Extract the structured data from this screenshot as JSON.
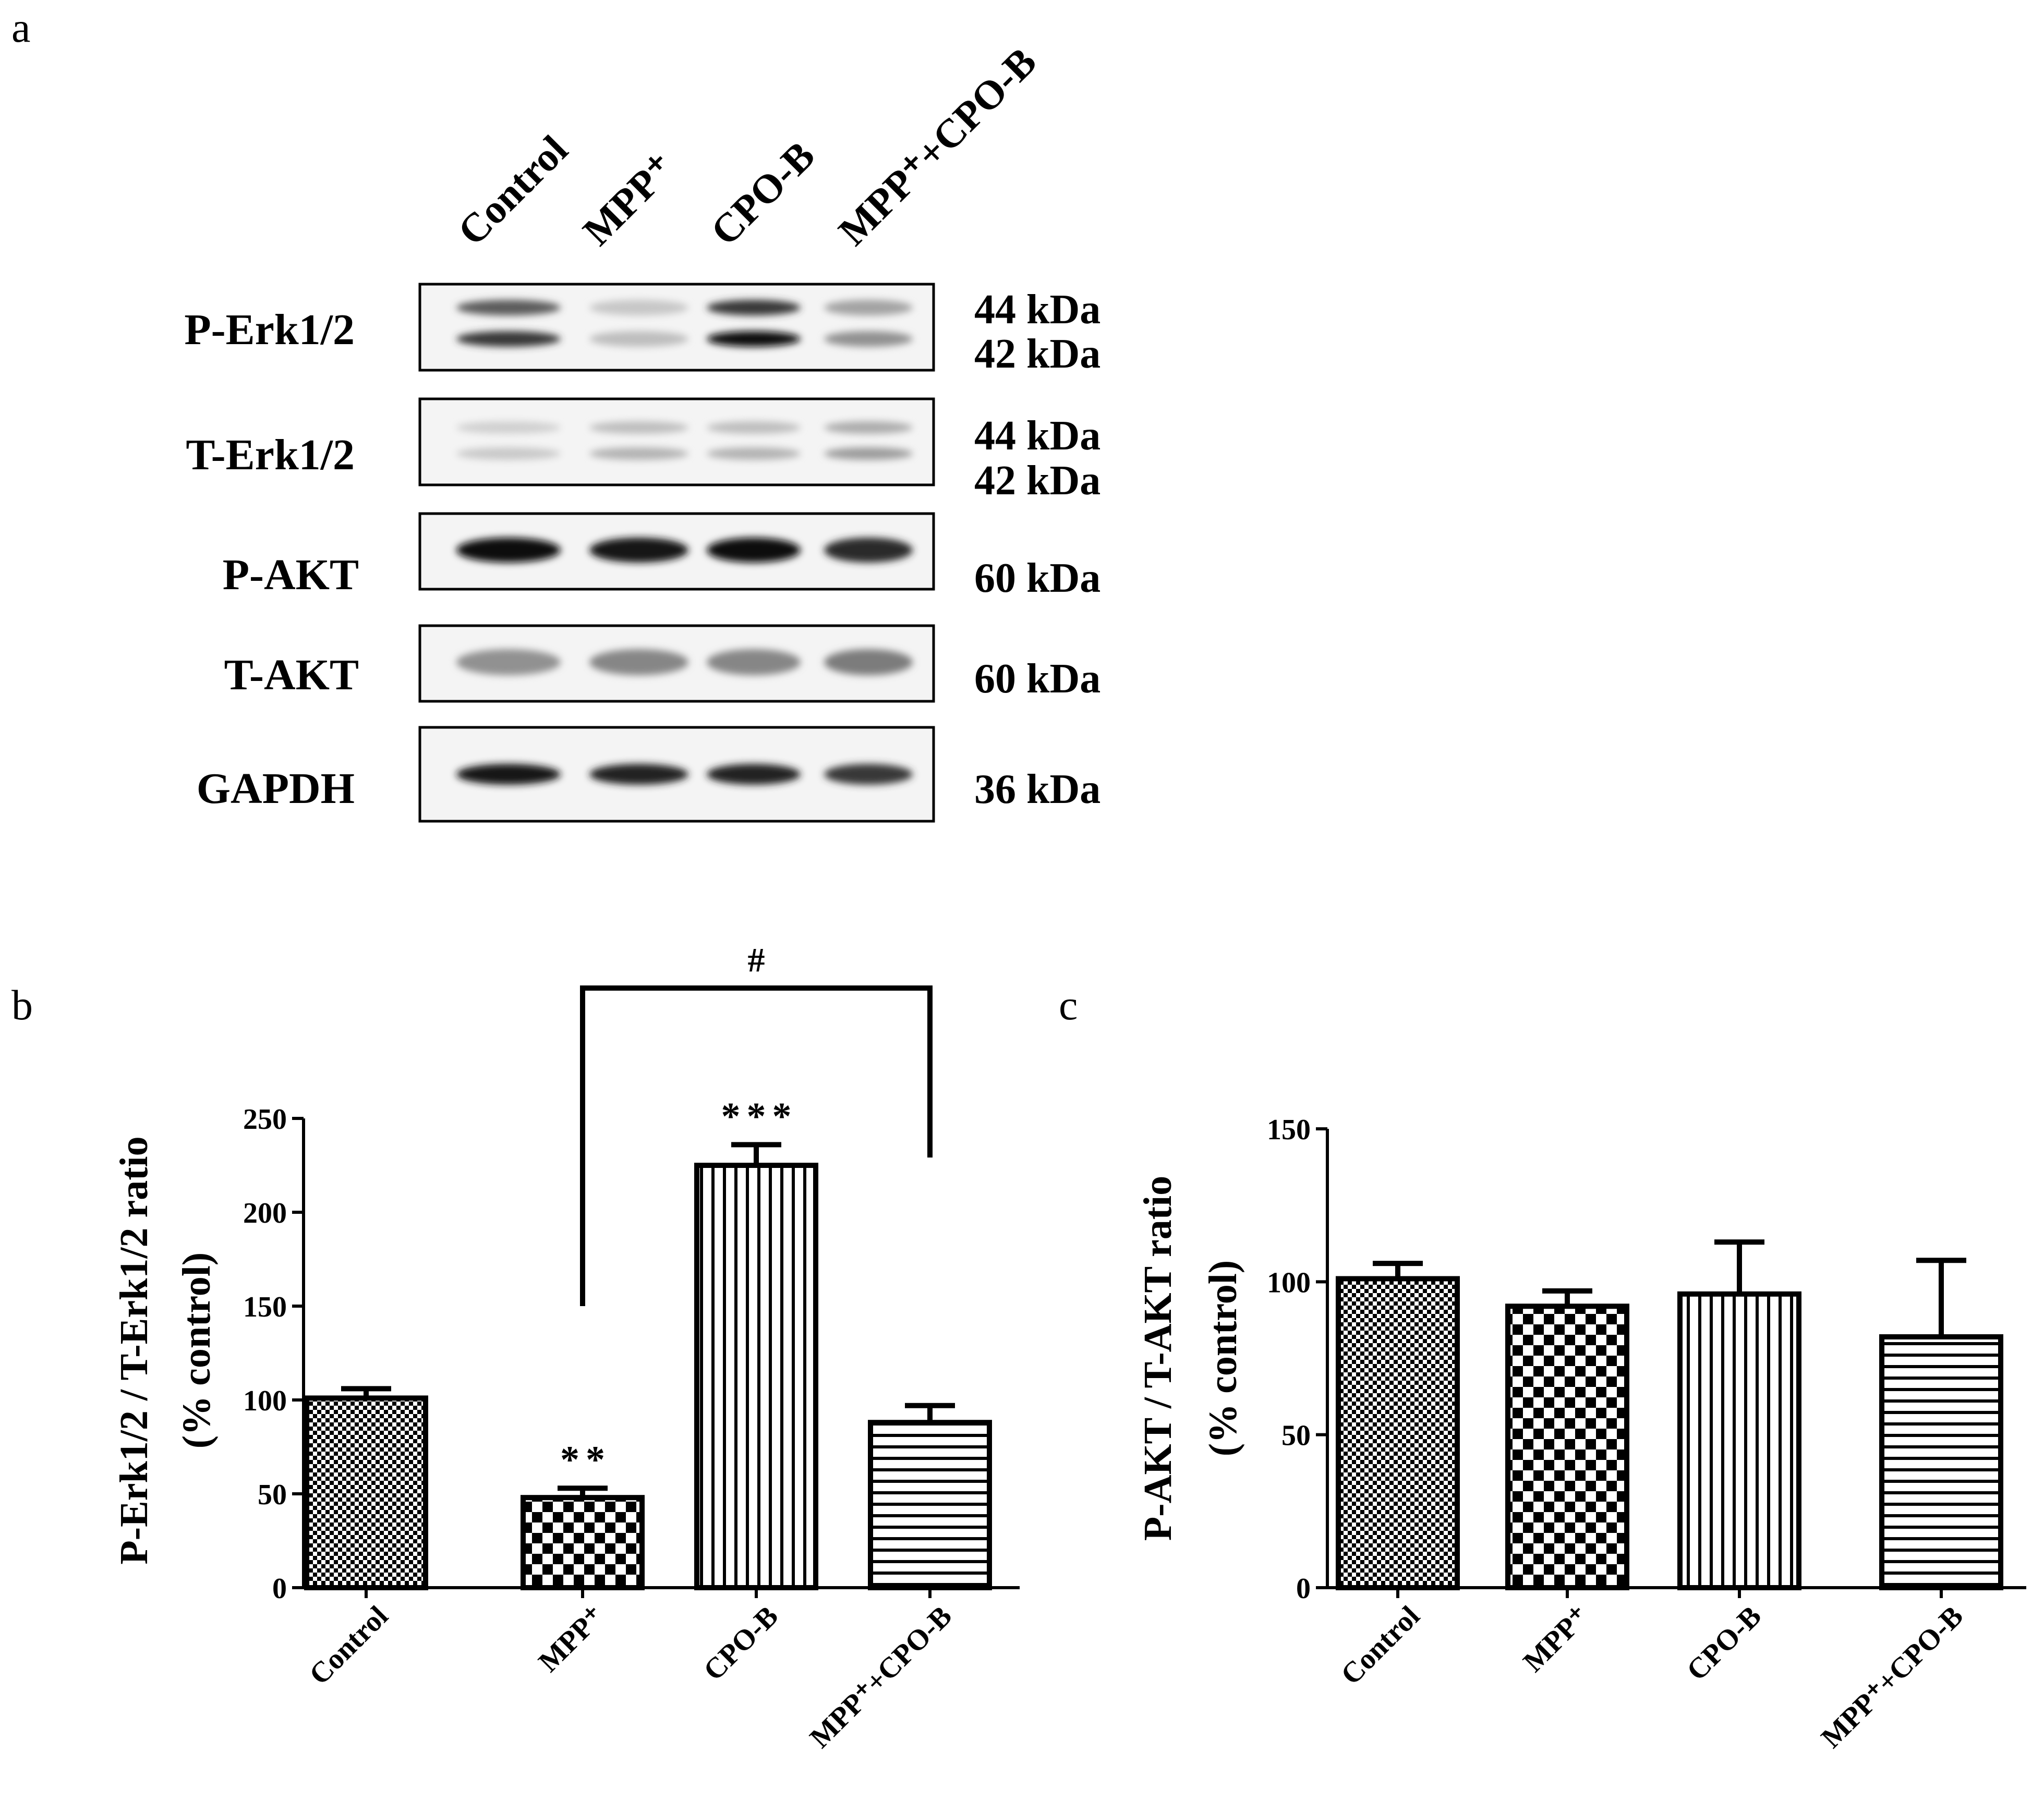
{
  "colors": {
    "ink": "#000000",
    "background": "#ffffff",
    "band": "#111111"
  },
  "panel_a": {
    "letter": "a",
    "lanes": [
      "Control",
      "MPP⁺",
      "CPO-B",
      "MPP⁺+CPO-B"
    ],
    "blots": [
      {
        "protein": "P-Erk1/2",
        "kda": [
          "44 kDa",
          "42 kDa"
        ],
        "band_intensity": [
          0.8,
          0.2,
          1.0,
          0.4
        ]
      },
      {
        "protein": "T-Erk1/2",
        "kda": [
          "44 kDa",
          "42 kDa"
        ],
        "band_intensity": [
          0.15,
          0.25,
          0.25,
          0.35
        ]
      },
      {
        "protein": "P-AKT",
        "kda": [
          "60 kDa"
        ],
        "band_intensity": [
          1.0,
          0.95,
          1.0,
          0.85
        ]
      },
      {
        "protein": "T-AKT",
        "kda": [
          "60 kDa"
        ],
        "band_intensity": [
          0.4,
          0.45,
          0.45,
          0.5
        ]
      },
      {
        "protein": "GAPDH",
        "kda": [
          "36 kDa"
        ],
        "band_intensity": [
          0.95,
          0.9,
          0.9,
          0.8
        ]
      }
    ]
  },
  "chart_data": [
    {
      "panel": "b",
      "type": "bar",
      "categories": [
        "Control",
        "MPP⁺",
        "CPO-B",
        "MPP⁺+CPO-B"
      ],
      "values": [
        101,
        48,
        225,
        88
      ],
      "errors": [
        5,
        5,
        11,
        9
      ],
      "patterns": [
        "fine-checker",
        "coarse-checker",
        "vertical-lines",
        "horizontal-lines"
      ],
      "annotations": [
        "",
        "**",
        "***",
        ""
      ],
      "comparison": {
        "from": "MPP⁺",
        "to": "MPP⁺+CPO-B",
        "label": "#"
      },
      "ylabel": [
        "P-Erk1/2 / T-Erk1/2 ratio",
        "(% control)"
      ],
      "ylim": [
        0,
        250
      ],
      "yticks": [
        0,
        50,
        100,
        150,
        200,
        250
      ]
    },
    {
      "panel": "c",
      "type": "bar",
      "categories": [
        "Control",
        "MPP⁺",
        "CPO-B",
        "MPP⁺+CPO-B"
      ],
      "values": [
        101,
        92,
        96,
        82
      ],
      "errors": [
        5,
        5,
        17,
        25
      ],
      "patterns": [
        "fine-checker",
        "coarse-checker",
        "vertical-lines",
        "horizontal-lines"
      ],
      "ylabel": [
        "P-AKT / T-AKT ratio",
        "(% control)"
      ],
      "ylim": [
        0,
        150
      ],
      "yticks": [
        0,
        50,
        100,
        150
      ]
    }
  ]
}
